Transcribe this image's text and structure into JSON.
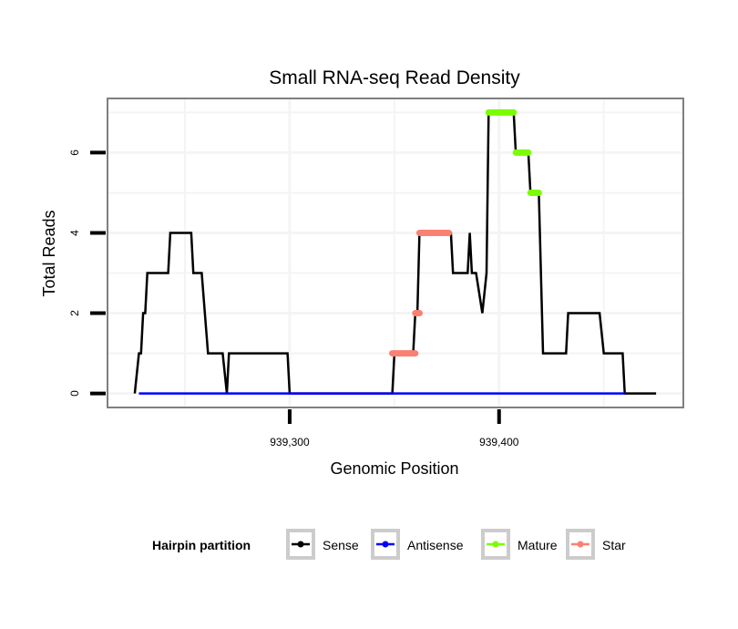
{
  "chart_data": {
    "type": "line",
    "title": "Small RNA-seq Read Density",
    "xlabel": "Genomic Position",
    "ylabel": "Total Reads",
    "xlim": [
      939213,
      939488
    ],
    "ylim": [
      -0.35,
      7.35
    ],
    "x_ticks": [
      {
        "value": 939300,
        "label": "939,300"
      },
      {
        "value": 939400,
        "label": "939,400"
      }
    ],
    "y_ticks": [
      {
        "value": 0,
        "label": "0"
      },
      {
        "value": 2,
        "label": "2"
      },
      {
        "value": 4,
        "label": "4"
      },
      {
        "value": 6,
        "label": "6"
      }
    ],
    "grid": true,
    "legend": {
      "title": "Hairpin partition",
      "position": "bottom",
      "entries": [
        {
          "name": "Sense",
          "color": "#000000"
        },
        {
          "name": "Antisense",
          "color": "#0000ff"
        },
        {
          "name": "Mature",
          "color": "#7cfc00"
        },
        {
          "name": "Star",
          "color": "#fa8072"
        }
      ]
    },
    "series": [
      {
        "name": "Sense",
        "color": "#000000",
        "points": [
          [
            939226,
            0
          ],
          [
            939228,
            1
          ],
          [
            939229,
            1
          ],
          [
            939230,
            2
          ],
          [
            939231,
            2
          ],
          [
            939232,
            3
          ],
          [
            939242,
            3
          ],
          [
            939243,
            4
          ],
          [
            939253,
            4
          ],
          [
            939254,
            3
          ],
          [
            939258,
            3
          ],
          [
            939261,
            1
          ],
          [
            939268,
            1
          ],
          [
            939270,
            0
          ],
          [
            939271,
            1
          ],
          [
            939299,
            1
          ],
          [
            939300,
            0
          ],
          [
            939349,
            0
          ],
          [
            939350,
            1
          ],
          [
            939359,
            1
          ],
          [
            939360,
            2
          ],
          [
            939361,
            2
          ],
          [
            939362,
            4
          ],
          [
            939377,
            4
          ],
          [
            939378,
            3
          ],
          [
            939385,
            3
          ],
          [
            939386,
            4
          ],
          [
            939387,
            3
          ],
          [
            939389,
            3
          ],
          [
            939392,
            2
          ],
          [
            939394,
            3
          ],
          [
            939395,
            7
          ],
          [
            939407,
            7
          ],
          [
            939408,
            6
          ],
          [
            939414,
            6
          ],
          [
            939415,
            5
          ],
          [
            939419,
            5
          ],
          [
            939421,
            1
          ],
          [
            939432,
            1
          ],
          [
            939433,
            2
          ],
          [
            939448,
            2
          ],
          [
            939450,
            1
          ],
          [
            939459,
            1
          ],
          [
            939460,
            0
          ],
          [
            939475,
            0
          ]
        ]
      },
      {
        "name": "Antisense",
        "color": "#0000ff",
        "points": [
          [
            939228,
            0
          ],
          [
            939460,
            0
          ]
        ]
      },
      {
        "name": "Mature",
        "color": "#7cfc00",
        "segments": [
          {
            "x": [
              939395,
              939407
            ],
            "y": 7
          },
          {
            "x": [
              939408,
              939414
            ],
            "y": 6
          },
          {
            "x": [
              939415,
              939419
            ],
            "y": 5
          }
        ]
      },
      {
        "name": "Star",
        "color": "#fa8072",
        "segments": [
          {
            "x": [
              939349,
              939360
            ],
            "y": 1
          },
          {
            "x": [
              939360,
              939362
            ],
            "y": 2
          },
          {
            "x": [
              939362,
              939376
            ],
            "y": 4
          }
        ]
      }
    ]
  }
}
